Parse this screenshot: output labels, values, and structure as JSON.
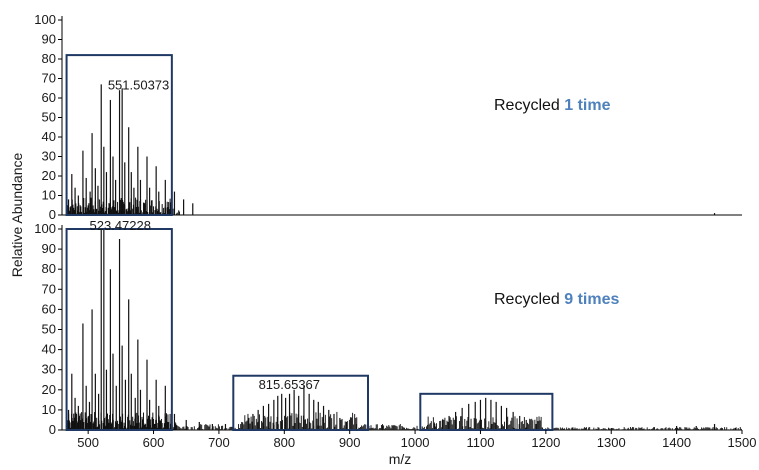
{
  "chart_data": {
    "type": "line",
    "xlabel": "m/z",
    "ylabel": "Relative Abundance",
    "xlim": [
      460,
      1500
    ],
    "x_ticks": [
      "500",
      "600",
      "700",
      "800",
      "900",
      "1000",
      "1100",
      "1200",
      "1300",
      "1400",
      "1500"
    ],
    "highlight_color": "#1f3864",
    "note_accent_color": "#4f81bd",
    "panels": [
      {
        "id": "top",
        "ylim": [
          0,
          100
        ],
        "y_ticks": [
          "0",
          "10",
          "20",
          "30",
          "40",
          "50",
          "60",
          "70",
          "80",
          "90",
          "100"
        ],
        "annotation": {
          "text": "551.50373",
          "x": 551.5,
          "y": 65
        },
        "note_prefix": "Recycled ",
        "note_emphasis": "1 time",
        "boxes": [
          {
            "x": [
              467,
              628
            ],
            "y": [
              0,
              82
            ]
          }
        ],
        "peaks": [
          {
            "x": 470,
            "y": 8
          },
          {
            "x": 475,
            "y": 21
          },
          {
            "x": 480,
            "y": 14
          },
          {
            "x": 485,
            "y": 10
          },
          {
            "x": 492,
            "y": 33
          },
          {
            "x": 497,
            "y": 19
          },
          {
            "x": 503,
            "y": 12
          },
          {
            "x": 506,
            "y": 42
          },
          {
            "x": 511,
            "y": 24
          },
          {
            "x": 515,
            "y": 15
          },
          {
            "x": 520,
            "y": 67
          },
          {
            "x": 524,
            "y": 35
          },
          {
            "x": 528,
            "y": 22
          },
          {
            "x": 534,
            "y": 59
          },
          {
            "x": 538,
            "y": 30
          },
          {
            "x": 542,
            "y": 18
          },
          {
            "x": 548,
            "y": 64
          },
          {
            "x": 552,
            "y": 65
          },
          {
            "x": 556,
            "y": 27
          },
          {
            "x": 562,
            "y": 45
          },
          {
            "x": 566,
            "y": 22
          },
          {
            "x": 570,
            "y": 14
          },
          {
            "x": 576,
            "y": 35
          },
          {
            "x": 580,
            "y": 18
          },
          {
            "x": 590,
            "y": 30
          },
          {
            "x": 594,
            "y": 14
          },
          {
            "x": 604,
            "y": 25
          },
          {
            "x": 608,
            "y": 12
          },
          {
            "x": 618,
            "y": 18
          },
          {
            "x": 632,
            "y": 12
          },
          {
            "x": 646,
            "y": 8
          },
          {
            "x": 660,
            "y": 6
          },
          {
            "x": 1458,
            "y": 1
          }
        ]
      },
      {
        "id": "bottom",
        "ylim": [
          0,
          100
        ],
        "y_ticks": [
          "0",
          "10",
          "20",
          "30",
          "40",
          "50",
          "60",
          "70",
          "80",
          "90",
          "100"
        ],
        "annotation": {
          "text": "523.47228",
          "x": 523.5,
          "y": 100
        },
        "note_prefix": "Recycled ",
        "note_emphasis": "9 times",
        "boxes": [
          {
            "x": [
              467,
              628
            ],
            "y": [
              0,
              100
            ]
          },
          {
            "x": [
              722,
              928
            ],
            "y": [
              0,
              27
            ]
          },
          {
            "x": [
              1008,
              1210
            ],
            "y": [
              0,
              18
            ]
          }
        ],
        "annotation2": {
          "text": "815.65367",
          "x": 815.7,
          "y": 20
        },
        "peaks": [
          {
            "x": 470,
            "y": 10
          },
          {
            "x": 475,
            "y": 28
          },
          {
            "x": 480,
            "y": 16
          },
          {
            "x": 485,
            "y": 12
          },
          {
            "x": 492,
            "y": 53
          },
          {
            "x": 497,
            "y": 22
          },
          {
            "x": 502,
            "y": 14
          },
          {
            "x": 506,
            "y": 60
          },
          {
            "x": 511,
            "y": 28
          },
          {
            "x": 516,
            "y": 18
          },
          {
            "x": 520,
            "y": 100
          },
          {
            "x": 524,
            "y": 100
          },
          {
            "x": 528,
            "y": 30
          },
          {
            "x": 534,
            "y": 80
          },
          {
            "x": 538,
            "y": 38
          },
          {
            "x": 543,
            "y": 22
          },
          {
            "x": 548,
            "y": 95
          },
          {
            "x": 552,
            "y": 42
          },
          {
            "x": 557,
            "y": 25
          },
          {
            "x": 562,
            "y": 65
          },
          {
            "x": 566,
            "y": 28
          },
          {
            "x": 572,
            "y": 16
          },
          {
            "x": 576,
            "y": 45
          },
          {
            "x": 580,
            "y": 20
          },
          {
            "x": 590,
            "y": 35
          },
          {
            "x": 594,
            "y": 15
          },
          {
            "x": 604,
            "y": 25
          },
          {
            "x": 608,
            "y": 12
          },
          {
            "x": 618,
            "y": 22
          },
          {
            "x": 632,
            "y": 8
          },
          {
            "x": 650,
            "y": 5
          },
          {
            "x": 670,
            "y": 4
          },
          {
            "x": 690,
            "y": 3
          },
          {
            "x": 710,
            "y": 3
          },
          {
            "x": 735,
            "y": 4
          },
          {
            "x": 745,
            "y": 6
          },
          {
            "x": 752,
            "y": 8
          },
          {
            "x": 760,
            "y": 10
          },
          {
            "x": 768,
            "y": 12
          },
          {
            "x": 776,
            "y": 13
          },
          {
            "x": 784,
            "y": 15
          },
          {
            "x": 790,
            "y": 17
          },
          {
            "x": 796,
            "y": 18
          },
          {
            "x": 802,
            "y": 16
          },
          {
            "x": 808,
            "y": 18
          },
          {
            "x": 815,
            "y": 20
          },
          {
            "x": 822,
            "y": 17
          },
          {
            "x": 830,
            "y": 22
          },
          {
            "x": 838,
            "y": 18
          },
          {
            "x": 845,
            "y": 15
          },
          {
            "x": 852,
            "y": 14
          },
          {
            "x": 860,
            "y": 12
          },
          {
            "x": 868,
            "y": 10
          },
          {
            "x": 876,
            "y": 8
          },
          {
            "x": 885,
            "y": 6
          },
          {
            "x": 895,
            "y": 4
          },
          {
            "x": 910,
            "y": 3
          },
          {
            "x": 950,
            "y": 2
          },
          {
            "x": 980,
            "y": 2
          },
          {
            "x": 1030,
            "y": 3
          },
          {
            "x": 1042,
            "y": 5
          },
          {
            "x": 1052,
            "y": 7
          },
          {
            "x": 1062,
            "y": 9
          },
          {
            "x": 1072,
            "y": 11
          },
          {
            "x": 1082,
            "y": 13
          },
          {
            "x": 1092,
            "y": 14
          },
          {
            "x": 1100,
            "y": 15
          },
          {
            "x": 1108,
            "y": 16
          },
          {
            "x": 1116,
            "y": 15
          },
          {
            "x": 1124,
            "y": 14
          },
          {
            "x": 1132,
            "y": 12
          },
          {
            "x": 1140,
            "y": 11
          },
          {
            "x": 1150,
            "y": 9
          },
          {
            "x": 1160,
            "y": 7
          },
          {
            "x": 1170,
            "y": 5
          },
          {
            "x": 1185,
            "y": 3
          },
          {
            "x": 1240,
            "y": 1
          },
          {
            "x": 1300,
            "y": 1
          },
          {
            "x": 1400,
            "y": 2
          },
          {
            "x": 1430,
            "y": 2
          },
          {
            "x": 1458,
            "y": 3
          },
          {
            "x": 1490,
            "y": 1
          }
        ]
      }
    ]
  }
}
